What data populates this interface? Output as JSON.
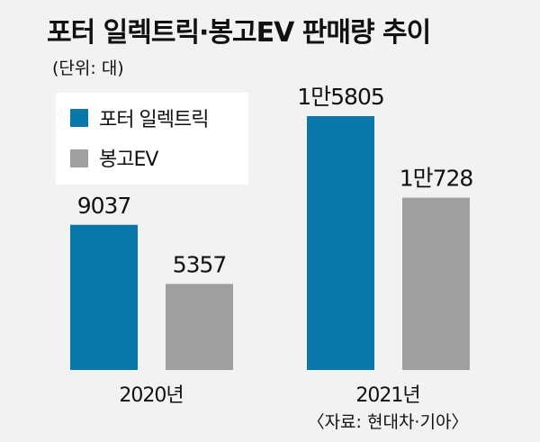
{
  "chart_data": {
    "type": "bar",
    "title": "포터 일렉트릭·봉고EV 판매량 추이",
    "unit_note": "(단위: 대)",
    "categories": [
      "2020년",
      "2021년"
    ],
    "series": [
      {
        "name": "포터 일렉트릭",
        "values": [
          9037,
          15805
        ],
        "labels": [
          "9037",
          "1만5805"
        ],
        "color": "#0a77aa"
      },
      {
        "name": "봉고EV",
        "values": [
          5357,
          10728
        ],
        "labels": [
          "5357",
          "1만728"
        ],
        "color": "#9f9f9f"
      }
    ],
    "ylim": [
      0,
      16000
    ],
    "grid": false,
    "legend_position": "top-left",
    "source": "〈자료: 현대차·기아〉"
  },
  "colors": {
    "frame": "#f2f2f2",
    "text": "#111111",
    "legend_box_bg": "#ffffff"
  }
}
